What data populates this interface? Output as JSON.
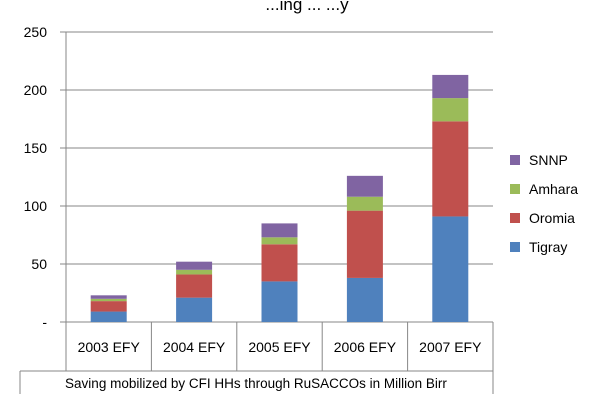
{
  "chart_data": {
    "type": "bar",
    "stacked": true,
    "title_partial": "...ing ... ...y",
    "categories": [
      "2003 EFY",
      "2004 EFY",
      "2005 EFY",
      "2006 EFY",
      "2007 EFY"
    ],
    "xlabel": "Saving mobilized by CFI HHs through RuSACCOs in Million Birr",
    "ylabel": "",
    "ylim": [
      0,
      250
    ],
    "yticks": [
      "-",
      "50",
      "100",
      "150",
      "200",
      "250"
    ],
    "grid": true,
    "legend_position": "right",
    "series": [
      {
        "name": "Tigray",
        "color": "#4F81BD",
        "values": [
          9,
          21,
          35,
          38,
          91
        ]
      },
      {
        "name": "Oromia",
        "color": "#C0504D",
        "values": [
          9,
          20,
          32,
          58,
          82
        ]
      },
      {
        "name": "Amhara",
        "color": "#9BBB59",
        "values": [
          2,
          4,
          6,
          12,
          20
        ]
      },
      {
        "name": "SNNP",
        "color": "#8064A2",
        "values": [
          3,
          7,
          12,
          18,
          20
        ]
      }
    ]
  }
}
